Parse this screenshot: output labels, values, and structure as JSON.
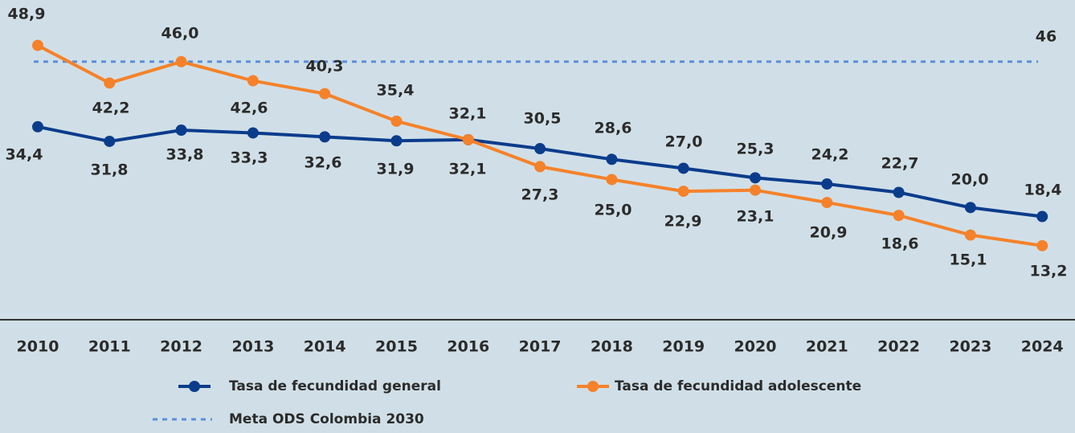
{
  "chart_data": {
    "type": "line",
    "categories": [
      "2010",
      "2011",
      "2012",
      "2013",
      "2014",
      "2015",
      "2016",
      "2017",
      "2018",
      "2019",
      "2020",
      "2021",
      "2022",
      "2023",
      "2024"
    ],
    "series": [
      {
        "name": "Tasa de fecundidad general",
        "color": "#0b3c8c",
        "values": [
          34.4,
          31.8,
          33.8,
          33.3,
          32.6,
          31.9,
          32.1,
          30.5,
          28.6,
          27.0,
          25.3,
          24.2,
          22.7,
          20.0,
          18.4
        ],
        "value_labels": [
          "34,4",
          "31,8",
          "33,8",
          "33,3",
          "32,6",
          "31,9",
          "32,1",
          "30,5",
          "28,6",
          "27,0",
          "25,3",
          "24,2",
          "22,7",
          "20,0",
          "18,4"
        ]
      },
      {
        "name": "Tasa de fecundidad adolescente",
        "color": "#f5822a",
        "values": [
          48.9,
          42.2,
          46.0,
          42.6,
          40.3,
          35.4,
          32.1,
          27.3,
          25.0,
          22.9,
          23.1,
          20.9,
          18.6,
          15.1,
          13.2
        ],
        "value_labels": [
          "48,9",
          "42,2",
          "46,0",
          "42,6",
          "40,3",
          "35,4",
          "32,1",
          "27,3",
          "25,0",
          "22,9",
          "23,1",
          "20,9",
          "18,6",
          "15,1",
          "13,2"
        ]
      }
    ],
    "reference_line": {
      "name": "Meta ODS Colombia 2030",
      "value": 46,
      "color": "#5b8fd9"
    },
    "ylim": [
      0,
      57
    ]
  }
}
